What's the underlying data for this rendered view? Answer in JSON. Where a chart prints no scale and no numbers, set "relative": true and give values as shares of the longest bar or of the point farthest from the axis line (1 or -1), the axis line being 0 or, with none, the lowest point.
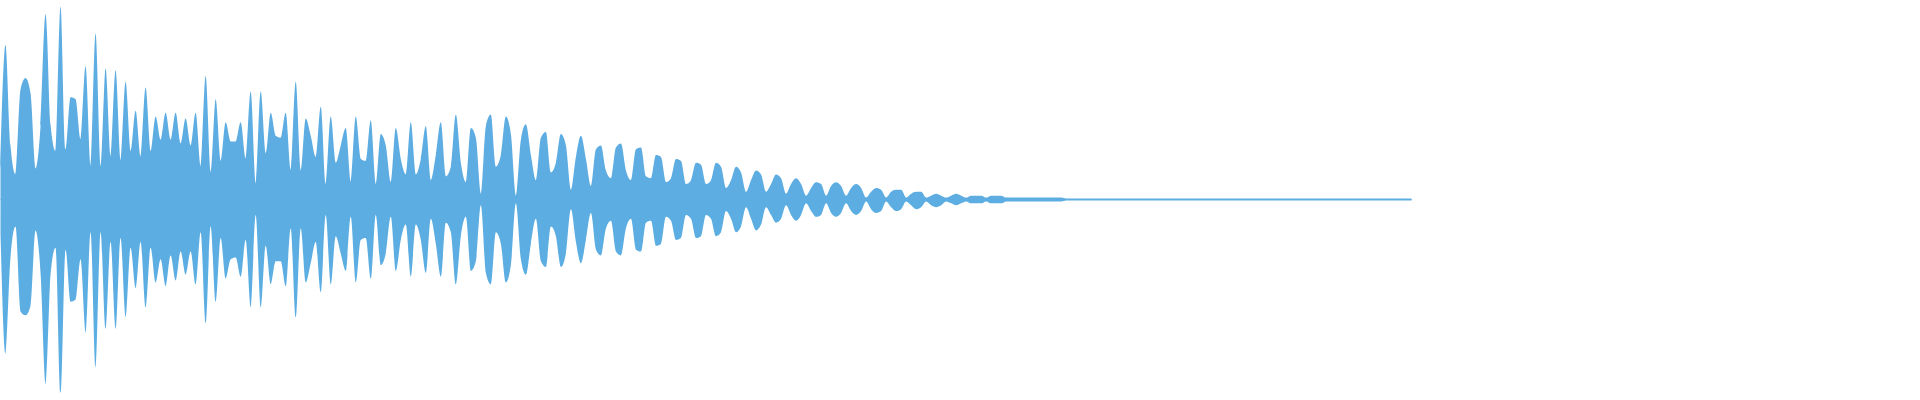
{
  "chart_data": {
    "type": "area",
    "relative": true,
    "categories": [
      null,
      null,
      null,
      null,
      null,
      null,
      null,
      null,
      null,
      null,
      null,
      null,
      null,
      null,
      null,
      null,
      null,
      null,
      null,
      null,
      null,
      null,
      null,
      null,
      null,
      null,
      null,
      null,
      null,
      null,
      null,
      null,
      null,
      null,
      null,
      null,
      null,
      null,
      null,
      null,
      null,
      null,
      null,
      null,
      null,
      null,
      null,
      null,
      null,
      null,
      null,
      null,
      null,
      null,
      null,
      null,
      null,
      null,
      null,
      null,
      null,
      null,
      null,
      null,
      null,
      null,
      null,
      null,
      null,
      null,
      null,
      null,
      null,
      null,
      null,
      null,
      null,
      null,
      null,
      null,
      null,
      null,
      null,
      null,
      null,
      null,
      null,
      null,
      null,
      null,
      null,
      null,
      null,
      null,
      null,
      null,
      null,
      null,
      null,
      null,
      null,
      null,
      null,
      null,
      null,
      null,
      null,
      null,
      null,
      null,
      null,
      null,
      null,
      null,
      null,
      null,
      null,
      null,
      null,
      null,
      null,
      null,
      null,
      null,
      null,
      null,
      null,
      null,
      null,
      null,
      null,
      null,
      null,
      null,
      null,
      null,
      null,
      null,
      null,
      null,
      null,
      null,
      null,
      null,
      null,
      null,
      null,
      null,
      null,
      null,
      null,
      null,
      null,
      null,
      null,
      null,
      null,
      null,
      null,
      null,
      null,
      null,
      null,
      null,
      null,
      null,
      null,
      null,
      null,
      null,
      null,
      null,
      null,
      null,
      null,
      null,
      null,
      null,
      null,
      null,
      null,
      null,
      null,
      null,
      null,
      null,
      null,
      null,
      null,
      null,
      null,
      null,
      null,
      null,
      null,
      null,
      null,
      null,
      null,
      null,
      null,
      null,
      null,
      null,
      null,
      null,
      null,
      null,
      null,
      null,
      null,
      null,
      null,
      null,
      null,
      null,
      null,
      null,
      null,
      null,
      null,
      null,
      null,
      null,
      null,
      null,
      null,
      null,
      null,
      null,
      null,
      null,
      null,
      null,
      null,
      null,
      null,
      null,
      null,
      null,
      null,
      null,
      null,
      null,
      null,
      null,
      null,
      null,
      null,
      null,
      null,
      null,
      null,
      null,
      null,
      null,
      null,
      null,
      null,
      null,
      null,
      null,
      null,
      null,
      null,
      null,
      null,
      null,
      null,
      null,
      null,
      null,
      null,
      null,
      null,
      null,
      null,
      null,
      null,
      null,
      null,
      null,
      null
    ],
    "ref_lines": [
      {
        "axis": "y",
        "value": 0,
        "color": "#5dade2"
      }
    ],
    "series": [
      {
        "color": "#5dade2",
        "values": [
          0.16,
          0.8,
          0.28,
          0.13,
          0.57,
          0.63,
          0.55,
          0.16,
          0.38,
          0.96,
          0.39,
          0.25,
          1,
          0.26,
          0.53,
          0.52,
          0.31,
          0.69,
          0.17,
          0.86,
          0.17,
          0.68,
          0.22,
          0.67,
          0.2,
          0.61,
          0.25,
          0.46,
          0.22,
          0.58,
          0.25,
          0.43,
          0.31,
          0.45,
          0.31,
          0.45,
          0.29,
          0.42,
          0.28,
          0.45,
          0.17,
          0.64,
          0.14,
          0.52,
          0.2,
          0.4,
          0.3,
          0.3,
          0.4,
          0.21,
          0.56,
          0.08,
          0.56,
          0.24,
          0.45,
          0.33,
          0.32,
          0.45,
          0.15,
          0.61,
          0.15,
          0.42,
          0.33,
          0.22,
          0.48,
          0.08,
          0.43,
          0.19,
          0.28,
          0.37,
          0.09,
          0.43,
          0.21,
          0.2,
          0.41,
          0.08,
          0.34,
          0.28,
          0.09,
          0.37,
          0.21,
          0.13,
          0.4,
          0.13,
          0.21,
          0.38,
          0.1,
          0.23,
          0.4,
          0.12,
          0.17,
          0.44,
          0.19,
          0.09,
          0.37,
          0.32,
          0.03,
          0.38,
          0.44,
          0.17,
          0.23,
          0.43,
          0.34,
          0.02,
          0.31,
          0.39,
          0.23,
          0.1,
          0.32,
          0.35,
          0.14,
          0.19,
          0.34,
          0.28,
          0.05,
          0.22,
          0.33,
          0.21,
          0.07,
          0.26,
          0.28,
          0.15,
          0.11,
          0.27,
          0.29,
          0.15,
          0.1,
          0.26,
          0.27,
          0.12,
          0.11,
          0.23,
          0.22,
          0.09,
          0.11,
          0.21,
          0.2,
          0.08,
          0.1,
          0.19,
          0.18,
          0.08,
          0.1,
          0.19,
          0.17,
          0.06,
          0.1,
          0.17,
          0.14,
          0.04,
          0.1,
          0.15,
          0.13,
          0.04,
          0.08,
          0.13,
          0.11,
          0.03,
          0.08,
          0.11,
          0.08,
          0.02,
          0.06,
          0.09,
          0.08,
          0.02,
          0.07,
          0.09,
          0.07,
          0.02,
          0.06,
          0.08,
          0.06,
          0.01,
          0.04,
          0.06,
          0.05,
          0.01,
          0.04,
          0.05,
          0.05,
          0.01,
          0.03,
          0.04,
          0.04,
          0.01,
          0.02,
          0.03,
          0.02,
          0.01,
          0.02,
          0.03,
          0.02,
          0.01,
          0.02,
          0.02,
          0.02,
          0.01,
          0.02,
          0.02,
          0.02,
          0.01,
          0.01,
          0.01,
          0.01,
          0.01,
          0.01,
          0.01,
          0.01,
          0.01,
          0.01,
          0.01,
          0.01,
          0.005,
          0.005,
          0.005,
          0.005,
          0.005,
          0.005,
          0.005,
          0.005,
          0.005,
          0.005,
          0.005,
          0.005,
          0.005,
          0.005,
          0.005,
          0.005,
          0.005,
          0.005,
          0.005,
          0.005,
          0.005,
          0.005,
          0.005,
          0.005,
          0.005,
          0.005,
          0.005,
          0.005,
          0.005,
          0.005,
          0.005,
          0.005,
          0.005,
          0.005,
          0.005,
          0.005,
          0.005,
          0.005,
          0.005,
          0.005,
          0.005,
          0.005,
          0.005,
          0.005,
          0.005,
          0.005,
          0.005,
          0.005,
          0.005,
          0.005,
          0.005,
          0.005,
          0.005,
          0.005,
          0.005,
          0.005,
          0.005,
          0.005,
          0.005,
          0.005,
          0.005,
          0.005,
          0.005,
          0.005,
          0.005,
          0.005,
          0.005,
          0.005,
          0.005,
          0.005
        ]
      },
      {
        "color": "#5caee2",
        "values": [
          -0.18,
          -0.8,
          -0.3,
          -0.14,
          -0.58,
          -0.6,
          -0.55,
          -0.16,
          -0.38,
          -0.96,
          -0.39,
          -0.25,
          -1,
          -0.26,
          -0.53,
          -0.52,
          -0.31,
          -0.69,
          -0.17,
          -0.87,
          -0.17,
          -0.67,
          -0.22,
          -0.67,
          -0.2,
          -0.61,
          -0.25,
          -0.46,
          -0.22,
          -0.56,
          -0.25,
          -0.43,
          -0.31,
          -0.45,
          -0.29,
          -0.42,
          -0.27,
          -0.39,
          -0.27,
          -0.44,
          -0.17,
          -0.64,
          -0.14,
          -0.53,
          -0.2,
          -0.41,
          -0.31,
          -0.3,
          -0.4,
          -0.21,
          -0.56,
          -0.08,
          -0.56,
          -0.24,
          -0.44,
          -0.32,
          -0.32,
          -0.45,
          -0.15,
          -0.61,
          -0.15,
          -0.43,
          -0.33,
          -0.22,
          -0.48,
          -0.08,
          -0.44,
          -0.19,
          -0.28,
          -0.37,
          -0.09,
          -0.43,
          -0.21,
          -0.2,
          -0.41,
          -0.08,
          -0.34,
          -0.28,
          -0.09,
          -0.37,
          -0.21,
          -0.13,
          -0.4,
          -0.13,
          -0.21,
          -0.38,
          -0.1,
          -0.23,
          -0.4,
          -0.12,
          -0.17,
          -0.44,
          -0.19,
          -0.09,
          -0.37,
          -0.32,
          -0.03,
          -0.38,
          -0.44,
          -0.17,
          -0.23,
          -0.43,
          -0.34,
          -0.02,
          -0.31,
          -0.39,
          -0.23,
          -0.1,
          -0.32,
          -0.35,
          -0.14,
          -0.19,
          -0.35,
          -0.28,
          -0.05,
          -0.22,
          -0.33,
          -0.21,
          -0.07,
          -0.26,
          -0.29,
          -0.15,
          -0.11,
          -0.27,
          -0.29,
          -0.15,
          -0.1,
          -0.26,
          -0.27,
          -0.12,
          -0.11,
          -0.24,
          -0.23,
          -0.09,
          -0.11,
          -0.21,
          -0.2,
          -0.08,
          -0.1,
          -0.2,
          -0.19,
          -0.08,
          -0.1,
          -0.19,
          -0.17,
          -0.06,
          -0.1,
          -0.17,
          -0.14,
          -0.04,
          -0.1,
          -0.16,
          -0.13,
          -0.04,
          -0.08,
          -0.12,
          -0.1,
          -0.03,
          -0.08,
          -0.11,
          -0.08,
          -0.02,
          -0.06,
          -0.09,
          -0.08,
          -0.02,
          -0.07,
          -0.09,
          -0.07,
          -0.02,
          -0.06,
          -0.08,
          -0.06,
          -0.01,
          -0.05,
          -0.07,
          -0.06,
          -0.01,
          -0.04,
          -0.06,
          -0.05,
          -0.01,
          -0.03,
          -0.05,
          -0.04,
          -0.01,
          -0.03,
          -0.04,
          -0.03,
          -0.01,
          -0.02,
          -0.03,
          -0.02,
          -0.01,
          -0.02,
          -0.02,
          -0.02,
          -0.01,
          -0.02,
          -0.02,
          -0.02,
          -0.01,
          -0.01,
          -0.01,
          -0.01,
          -0.01,
          -0.01,
          -0.01,
          -0.01,
          -0.01,
          -0.01,
          -0.01,
          -0.01,
          -0.005,
          -0.005,
          -0.005,
          -0.005,
          -0.005,
          -0.005,
          -0.005,
          -0.005,
          -0.005,
          -0.005,
          -0.005,
          -0.005,
          -0.005,
          -0.005,
          -0.005,
          -0.005,
          -0.005,
          -0.005,
          -0.005,
          -0.005,
          -0.005,
          -0.005,
          -0.005,
          -0.005,
          -0.005,
          -0.005,
          -0.005,
          -0.005,
          -0.005,
          -0.005,
          -0.005,
          -0.005,
          -0.005,
          -0.005,
          -0.005,
          -0.005,
          -0.005,
          -0.005,
          -0.005,
          -0.005,
          -0.005,
          -0.005,
          -0.005,
          -0.005,
          -0.005,
          -0.005,
          -0.005,
          -0.005,
          -0.005,
          -0.005,
          -0.005,
          -0.005,
          -0.005,
          -0.005,
          -0.005,
          -0.005,
          -0.005,
          -0.005,
          -0.005,
          -0.005,
          -0.005,
          -0.005,
          -0.005,
          -0.005,
          -0.005,
          -0.005,
          -0.005,
          -0.005,
          -0.005,
          -0.005
        ]
      }
    ]
  }
}
